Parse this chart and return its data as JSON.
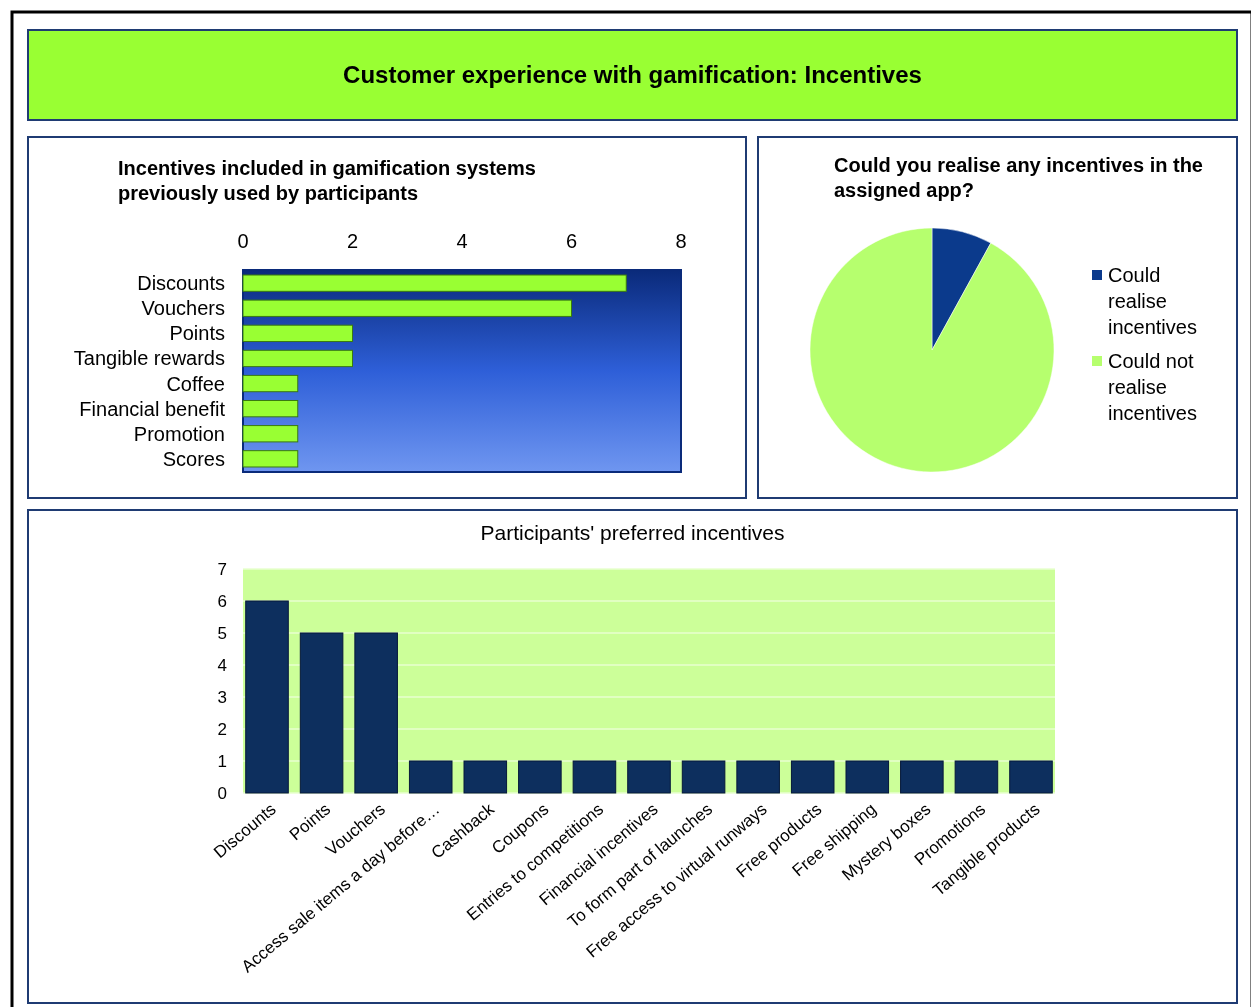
{
  "chart_data": [
    {
      "type": "other",
      "title": "Customer experience with gamification: Incentives"
    },
    {
      "type": "bar",
      "orientation": "horizontal",
      "title": "Incentives included in gamification systems previously used by participants",
      "categories": [
        "Discounts",
        "Vouchers",
        "Points",
        "Tangible rewards",
        "Coffee",
        "Financial benefit",
        "Promotion",
        "Scores"
      ],
      "values": [
        7,
        6,
        2,
        2,
        1,
        1,
        1,
        1
      ],
      "color": "#99ff33",
      "xlim": [
        0,
        8
      ],
      "xticks": [
        0,
        2,
        4,
        6,
        8
      ],
      "grid": false
    },
    {
      "type": "pie",
      "title": "Could you realise any incentives in the assigned app?",
      "categories": [
        "Could realise incentives",
        "Could not realise incentives"
      ],
      "values": [
        8,
        92
      ],
      "colors": [
        "#0b3a8c",
        "#b6ff6e"
      ],
      "legend": "right"
    },
    {
      "type": "bar",
      "title": "Participants' preferred incentives",
      "categories": [
        "Discounts",
        "Points",
        "Vouchers",
        "Access sale items a day before…",
        "Cashback",
        "Coupons",
        "Entries to competitions",
        "Financial incentives",
        "To form part of launches",
        "Free access to virtual runways",
        "Free products",
        "Free shipping",
        "Mystery boxes",
        "Promotions",
        "Tangible products"
      ],
      "values": [
        6,
        5,
        5,
        1,
        1,
        1,
        1,
        1,
        1,
        1,
        1,
        1,
        1,
        1,
        1
      ],
      "color": "#0d2f5e",
      "ylim": [
        0,
        7
      ],
      "yticks": [
        0,
        1,
        2,
        3,
        4,
        5,
        6,
        7
      ],
      "grid": "y"
    }
  ]
}
